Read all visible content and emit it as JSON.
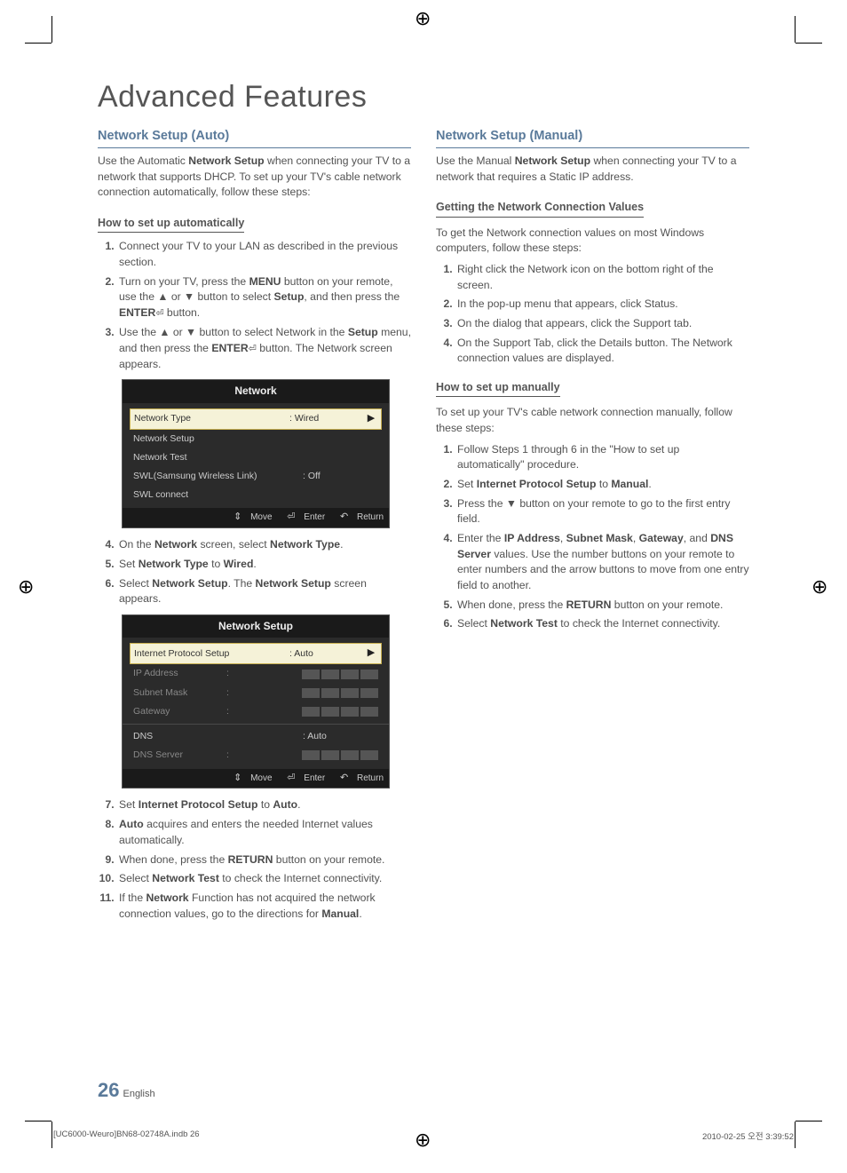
{
  "page": {
    "title": "Advanced Features",
    "page_number": "26",
    "page_lang": "English",
    "footer_left": "[UC6000-Weuro]BN68-02748A.indb   26",
    "footer_right": "2010-02-25   오전 3:39:52"
  },
  "left": {
    "heading": "Network Setup (Auto)",
    "intro_pre": "Use the Automatic ",
    "intro_bold": "Network Setup",
    "intro_post": " when connecting your TV to a network that supports DHCP. To set up your TV's cable network connection automatically, follow these steps:",
    "sub1": "How to set up automatically",
    "step1": "Connect your TV to your LAN as described in the previous section.",
    "step2_pre": "Turn on your TV, press the ",
    "step2_b1": "MENU",
    "step2_mid1": " button on your remote, use the ▲ or ▼ button to select ",
    "step2_b2": "Setup",
    "step2_mid2": ", and then press the ",
    "step2_b3": "ENTER",
    "step2_icon": "⏎",
    "step2_post": " button.",
    "step3_pre": "Use the ▲ or ▼ button to select Network in the ",
    "step3_b1": "Setup",
    "step3_mid": " menu, and then press the ",
    "step3_b2": "ENTER",
    "step3_icon": "⏎",
    "step3_post": " button. The Network screen appears.",
    "step4_pre": "On the ",
    "step4_b1": "Network",
    "step4_mid": " screen, select ",
    "step4_b2": "Network Type",
    "step4_post": ".",
    "step5_pre": "Set ",
    "step5_b1": "Network Type",
    "step5_mid": " to ",
    "step5_b2": "Wired",
    "step5_post": ".",
    "step6_pre": "Select ",
    "step6_b1": "Network Setup",
    "step6_mid": ". The ",
    "step6_b2": "Network Setup",
    "step6_post": " screen appears.",
    "step7_pre": "Set ",
    "step7_b1": "Internet Protocol Setup",
    "step7_mid": " to ",
    "step7_b2": "Auto",
    "step7_post": ".",
    "step8_b": "Auto",
    "step8_post": " acquires and enters the needed Internet values automatically.",
    "step9_pre": "When done, press the ",
    "step9_b": "RETURN",
    "step9_post": " button on your remote.",
    "step10_pre": "Select ",
    "step10_b": "Network Test",
    "step10_post": " to check the Internet connectivity.",
    "step11_pre": "If the ",
    "step11_b1": "Network",
    "step11_mid": " Function has not acquired the network connection values, go to the directions for ",
    "step11_b2": "Manual",
    "step11_post": "."
  },
  "osd1": {
    "title": "Network",
    "rows": {
      "r1": {
        "label": "Network Type",
        "val": ": Wired",
        "arrow": "▶"
      },
      "r2": {
        "label": "Network Setup"
      },
      "r3": {
        "label": "Network Test"
      },
      "r4": {
        "label": "SWL(Samsung Wireless Link)",
        "val": ": Off"
      },
      "r5": {
        "label": "SWL connect"
      }
    },
    "footer": {
      "move": "Move",
      "enter": "Enter",
      "return": "Return"
    }
  },
  "osd2": {
    "title": "Network Setup",
    "rows": {
      "r1": {
        "label": "Internet Protocol Setup",
        "val": ": Auto",
        "arrow": "▶"
      },
      "r2": {
        "label": "IP Address"
      },
      "r3": {
        "label": "Subnet Mask"
      },
      "r4": {
        "label": "Gateway"
      },
      "r5": {
        "label": "DNS",
        "val": ": Auto"
      },
      "r6": {
        "label": "DNS Server"
      }
    },
    "footer": {
      "move": "Move",
      "enter": "Enter",
      "return": "Return"
    }
  },
  "right": {
    "heading": "Network Setup (Manual)",
    "intro_pre": "Use the Manual ",
    "intro_bold": "Network Setup",
    "intro_post": " when connecting your TV to a network that requires a Static IP address.",
    "sub1": "Getting the Network Connection Values",
    "sub1_intro": "To get the Network connection values on most Windows computers, follow these steps:",
    "a_step1": "Right click the Network icon on the bottom right of the screen.",
    "a_step2": "In the pop-up menu that appears, click Status.",
    "a_step3": "On the dialog that appears, click the Support tab.",
    "a_step4": "On the Support Tab, click the Details button. The Network connection values are displayed.",
    "sub2": "How to set up manually",
    "sub2_intro": "To set up your TV's cable network connection manually, follow these steps:",
    "b_step1": "Follow Steps 1 through 6 in the \"How to set up automatically\" procedure.",
    "b_step2_pre": "Set ",
    "b_step2_b1": "Internet Protocol Setup",
    "b_step2_mid": " to ",
    "b_step2_b2": "Manual",
    "b_step2_post": ".",
    "b_step3": "Press the ▼ button on your remote to go to the first entry field.",
    "b_step4_pre": "Enter the ",
    "b_step4_b1": "IP Address",
    "b_step4_c1": ", ",
    "b_step4_b2": "Subnet Mask",
    "b_step4_c2": ", ",
    "b_step4_b3": "Gateway",
    "b_step4_c3": ", and ",
    "b_step4_b4": "DNS Server",
    "b_step4_post": " values. Use the number buttons on your remote to enter numbers and the arrow buttons to move from one entry field to another.",
    "b_step5_pre": "When done, press the ",
    "b_step5_b": "RETURN",
    "b_step5_post": " button on your remote.",
    "b_step6_pre": "Select ",
    "b_step6_b": "Network Test",
    "b_step6_post": " to check the Internet connectivity."
  }
}
